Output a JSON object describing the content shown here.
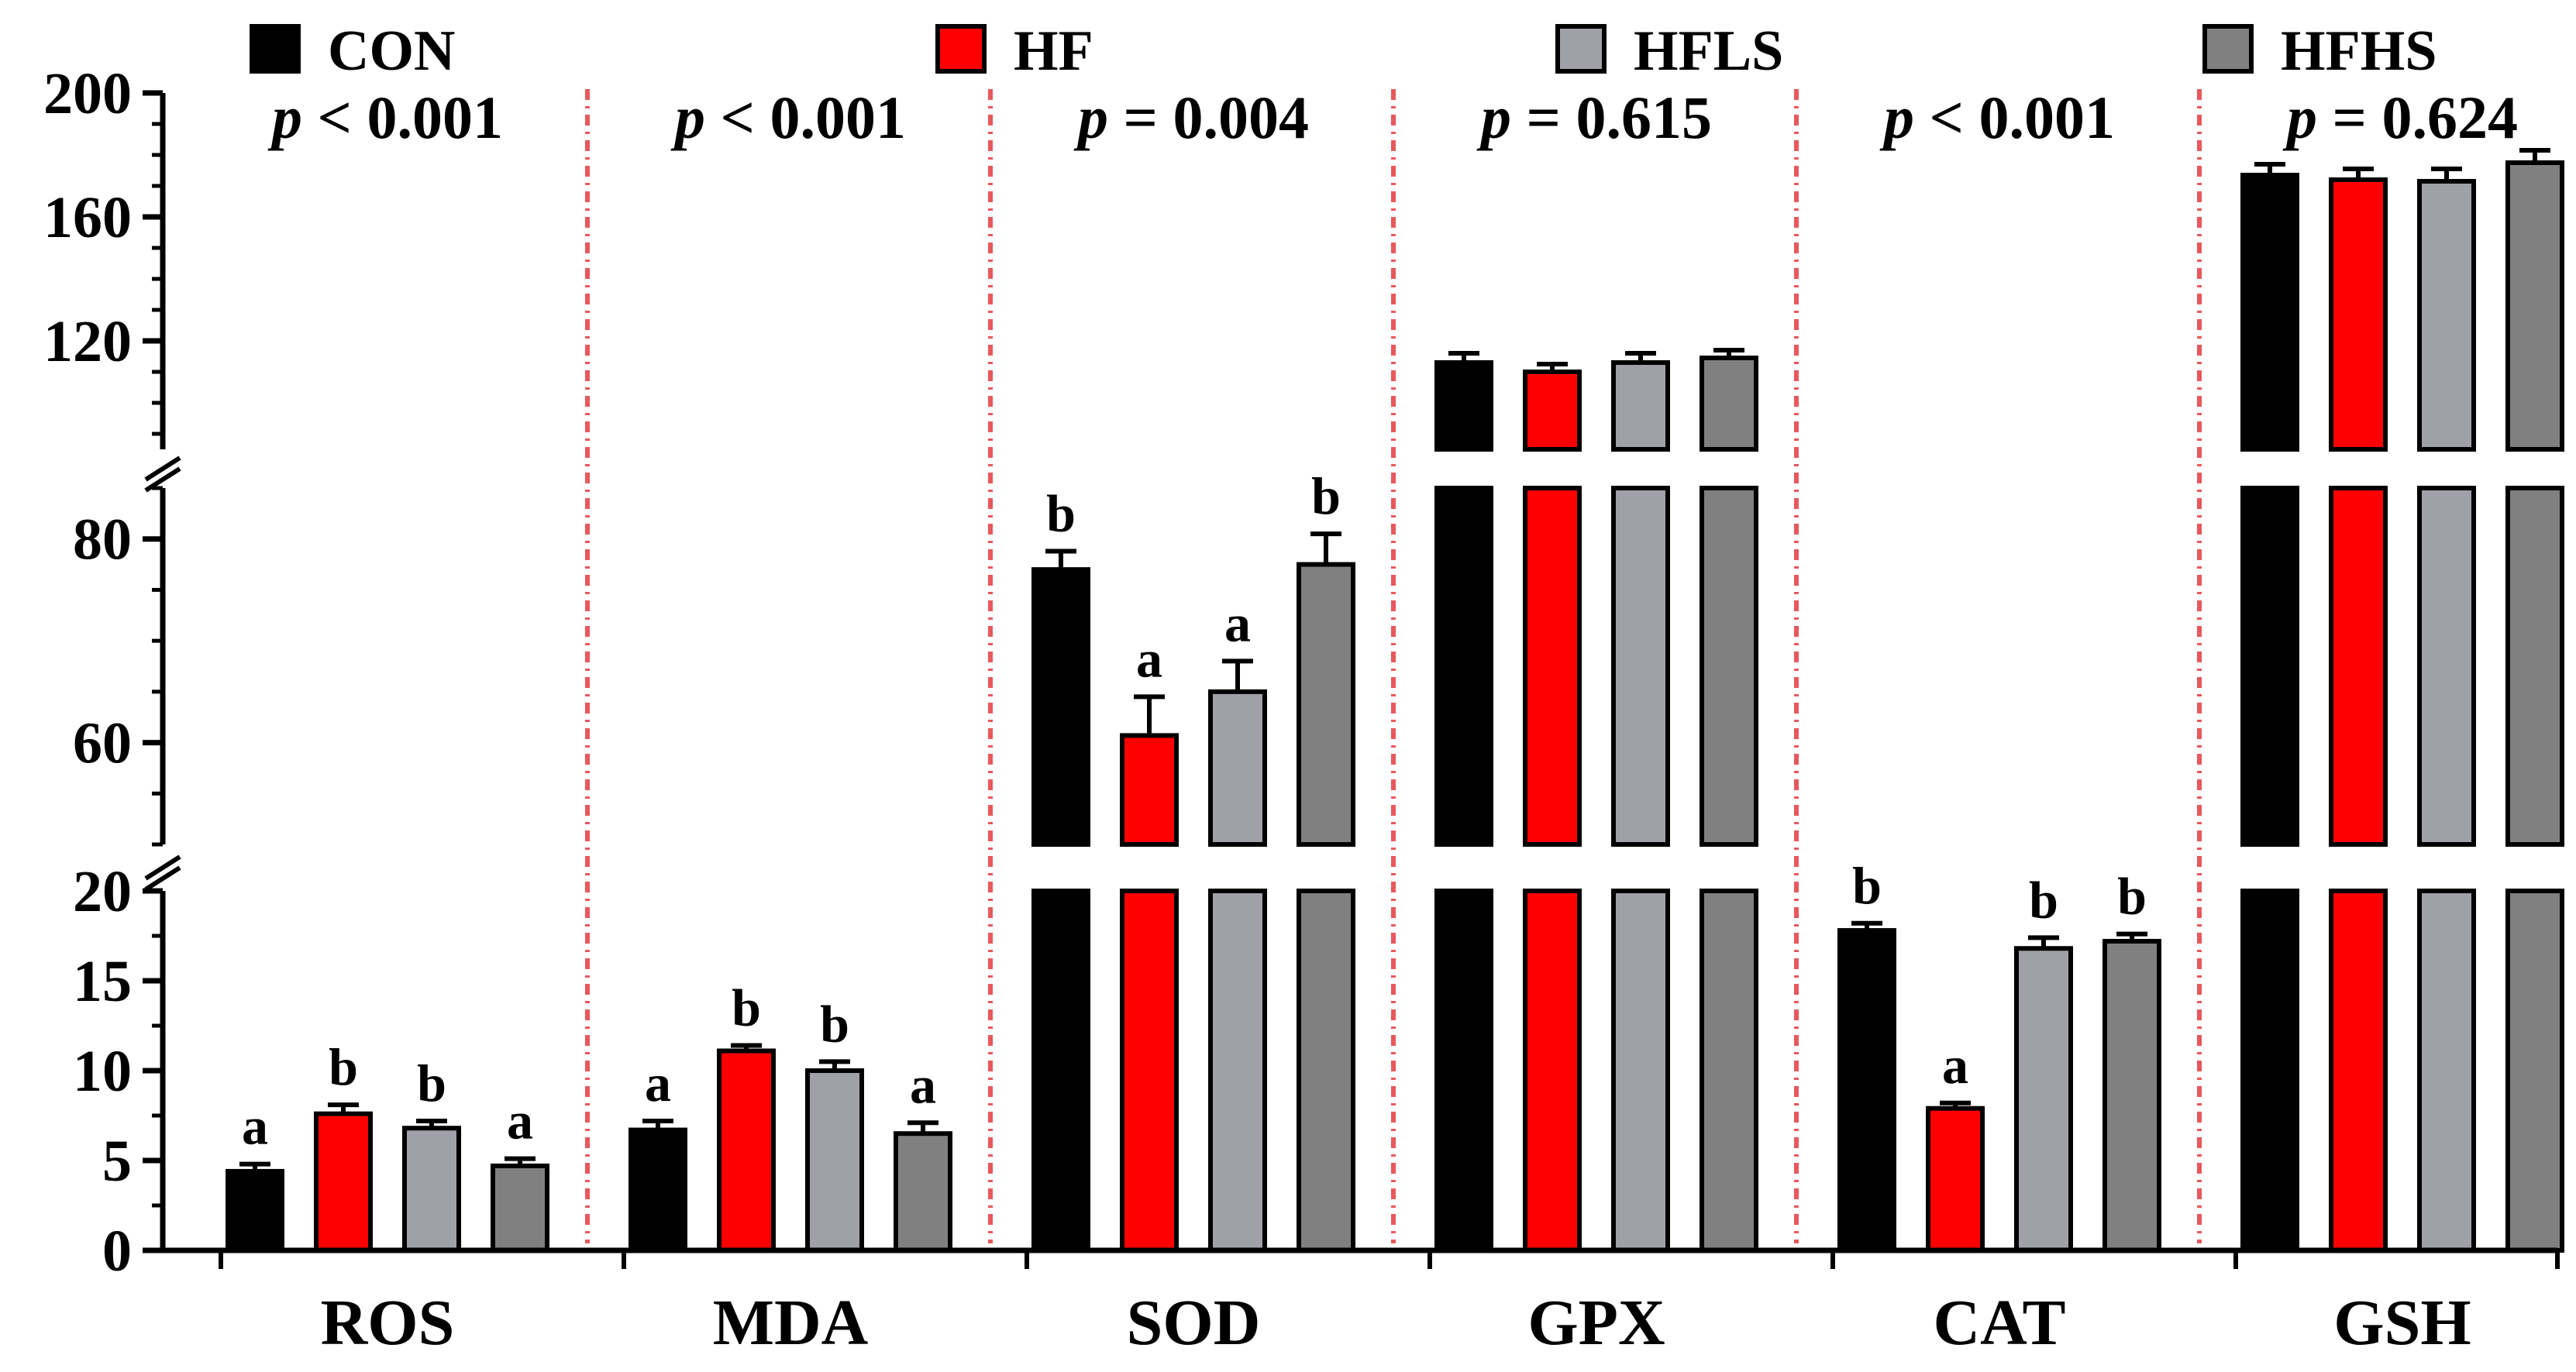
{
  "chart_data": {
    "type": "bar",
    "title": "",
    "xlabel": "",
    "ylabel": "",
    "categories": [
      "ROS",
      "MDA",
      "SOD",
      "GPX",
      "CAT",
      "GSH"
    ],
    "series": [
      {
        "name": "CON",
        "color": "#000000",
        "values": [
          4.4,
          6.7,
          77.0,
          113.0,
          17.8,
          173.5
        ],
        "errors": [
          0.4,
          0.5,
          1.8,
          3.0,
          0.4,
          3.5
        ]
      },
      {
        "name": "HF",
        "color": "#ff0000",
        "values": [
          7.6,
          11.1,
          60.7,
          110.0,
          7.9,
          172.0
        ],
        "errors": [
          0.5,
          0.3,
          3.8,
          2.5,
          0.3,
          3.5
        ]
      },
      {
        "name": "HFLS",
        "color": "#a0a0a8",
        "values": [
          6.8,
          10.0,
          65.0,
          113.0,
          16.8,
          171.5
        ],
        "errors": [
          0.4,
          0.5,
          3.0,
          3.0,
          0.6,
          4.0
        ]
      },
      {
        "name": "HFHS",
        "color": "#808080",
        "values": [
          4.7,
          6.5,
          77.5,
          114.5,
          17.2,
          177.5
        ],
        "errors": [
          0.4,
          0.6,
          3.0,
          2.5,
          0.4,
          4.0
        ]
      }
    ],
    "significance_letters": [
      [
        "a",
        "b",
        "b",
        "a"
      ],
      [
        "a",
        "b",
        "b",
        "a"
      ],
      [
        "b",
        "a",
        "a",
        "b"
      ],
      [
        "",
        "",
        "",
        ""
      ],
      [
        "b",
        "a",
        "b",
        "b"
      ],
      [
        "",
        "",
        "",
        ""
      ]
    ],
    "p_values": [
      "p < 0.001",
      "p < 0.001",
      "p = 0.004",
      "p = 0.615",
      "p < 0.001",
      "p = 0.624"
    ],
    "y_axis": {
      "segments": [
        {
          "range": [
            0,
            20
          ],
          "ticks": [
            0,
            5,
            10,
            15,
            20
          ]
        },
        {
          "range": [
            50,
            85
          ],
          "ticks": [
            60,
            80
          ]
        },
        {
          "range": [
            85,
            200
          ],
          "ticks": [
            120,
            160,
            200
          ]
        }
      ],
      "tick_labels": [
        "0",
        "5",
        "10",
        "15",
        "20",
        "60",
        "80",
        "120",
        "160",
        "200"
      ]
    },
    "legend": {
      "placement": "top",
      "entries": [
        "CON",
        "HF",
        "HFLS",
        "HFHS"
      ]
    },
    "separator_color": "#e8585c"
  }
}
